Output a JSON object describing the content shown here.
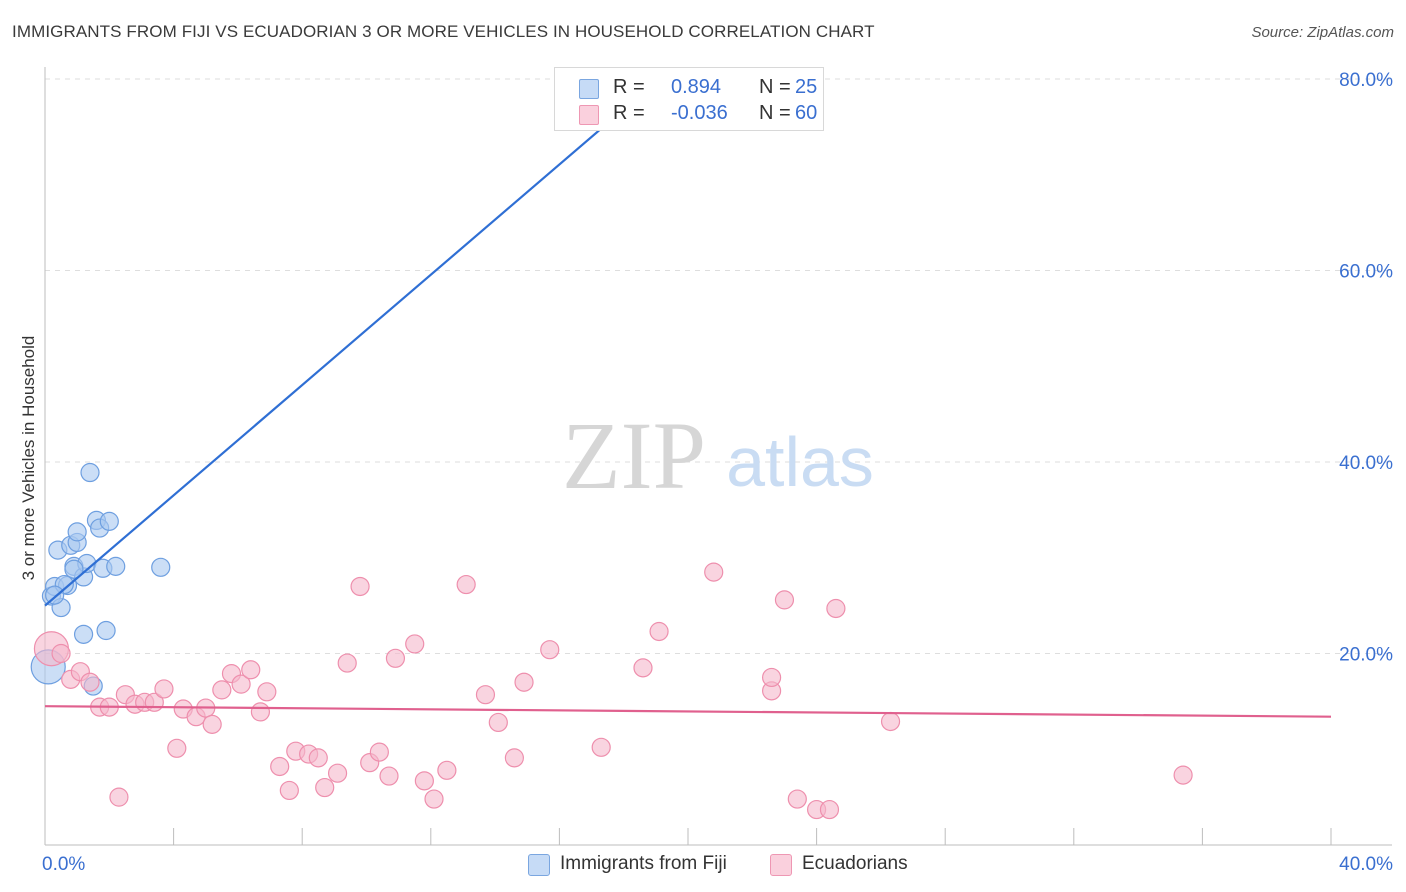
{
  "title": "IMMIGRANTS FROM FIJI VS ECUADORIAN 3 OR MORE VEHICLES IN HOUSEHOLD CORRELATION CHART",
  "source": "Source: ZipAtlas.com",
  "watermark": {
    "zip": "ZIP",
    "atlas": "atlas"
  },
  "legend_top": {
    "rows": [
      {
        "label": "R =",
        "r": "0.894",
        "n_label": "N =",
        "n": "25",
        "color": "#a9c8f0"
      },
      {
        "label": "R =",
        "r": "-0.036",
        "n_label": "N =",
        "n": "60",
        "color": "#f5b8cb"
      }
    ]
  },
  "chart_data": {
    "type": "scatter",
    "title": "IMMIGRANTS FROM FIJI VS ECUADORIAN 3 OR MORE VEHICLES IN HOUSEHOLD CORRELATION CHART",
    "xlabel": "",
    "ylabel": "3 or more Vehicles in Household",
    "xlim": [
      0,
      40
    ],
    "ylim": [
      0,
      80
    ],
    "x_tick_labels": [
      {
        "value": 0,
        "label": "0.0%"
      },
      {
        "value": 40,
        "label": "40.0%"
      }
    ],
    "y_tick_labels": [
      {
        "value": 20,
        "label": "20.0%"
      },
      {
        "value": 40,
        "label": "40.0%"
      },
      {
        "value": 60,
        "label": "60.0%"
      },
      {
        "value": 80,
        "label": "80.0%"
      }
    ],
    "grid": true,
    "legend_position": "bottom",
    "series": [
      {
        "name": "Immigrants from Fiji",
        "color": "#a9c8f0",
        "stroke": "#6e9fe0",
        "trend_color": "#2f6fd4",
        "trend": {
          "x": [
            0,
            19.1
          ],
          "y": [
            25.0,
            80.0
          ]
        },
        "points": [
          {
            "x": 0.1,
            "y": 18.6,
            "big": true
          },
          {
            "x": 0.2,
            "y": 26.0
          },
          {
            "x": 0.3,
            "y": 27.0
          },
          {
            "x": 0.5,
            "y": 24.8
          },
          {
            "x": 0.4,
            "y": 30.8
          },
          {
            "x": 0.7,
            "y": 27.1
          },
          {
            "x": 0.8,
            "y": 31.3
          },
          {
            "x": 0.9,
            "y": 29.1
          },
          {
            "x": 1.0,
            "y": 31.6
          },
          {
            "x": 1.0,
            "y": 32.7
          },
          {
            "x": 1.2,
            "y": 22.0
          },
          {
            "x": 1.2,
            "y": 28.0
          },
          {
            "x": 1.3,
            "y": 29.4
          },
          {
            "x": 1.4,
            "y": 38.9
          },
          {
            "x": 1.5,
            "y": 16.6
          },
          {
            "x": 1.6,
            "y": 33.9
          },
          {
            "x": 1.7,
            "y": 33.1
          },
          {
            "x": 1.8,
            "y": 28.9
          },
          {
            "x": 1.9,
            "y": 22.4
          },
          {
            "x": 2.0,
            "y": 33.8
          },
          {
            "x": 2.2,
            "y": 29.1
          },
          {
            "x": 3.6,
            "y": 29.0
          },
          {
            "x": 0.6,
            "y": 27.2
          },
          {
            "x": 0.3,
            "y": 26.1
          },
          {
            "x": 0.9,
            "y": 28.8
          }
        ]
      },
      {
        "name": "Ecuadorians",
        "color": "#f5b8cb",
        "stroke": "#ee8fad",
        "trend_color": "#e0608e",
        "trend": {
          "x": [
            0,
            40
          ],
          "y": [
            14.5,
            13.4
          ]
        },
        "points": [
          {
            "x": 0.2,
            "y": 20.5,
            "big": true
          },
          {
            "x": 0.5,
            "y": 20.0
          },
          {
            "x": 0.8,
            "y": 17.3
          },
          {
            "x": 1.1,
            "y": 18.1
          },
          {
            "x": 1.4,
            "y": 17.0
          },
          {
            "x": 1.7,
            "y": 14.4
          },
          {
            "x": 2.0,
            "y": 14.4
          },
          {
            "x": 2.3,
            "y": 5.0
          },
          {
            "x": 2.5,
            "y": 15.7
          },
          {
            "x": 2.8,
            "y": 14.7
          },
          {
            "x": 3.1,
            "y": 14.9
          },
          {
            "x": 3.4,
            "y": 14.9
          },
          {
            "x": 3.7,
            "y": 16.3
          },
          {
            "x": 4.1,
            "y": 10.1
          },
          {
            "x": 4.3,
            "y": 14.2
          },
          {
            "x": 4.7,
            "y": 13.4
          },
          {
            "x": 5.0,
            "y": 14.3
          },
          {
            "x": 5.2,
            "y": 12.6
          },
          {
            "x": 5.5,
            "y": 16.2
          },
          {
            "x": 5.8,
            "y": 17.9
          },
          {
            "x": 6.1,
            "y": 16.8
          },
          {
            "x": 6.4,
            "y": 18.3
          },
          {
            "x": 6.7,
            "y": 13.9
          },
          {
            "x": 6.9,
            "y": 16.0
          },
          {
            "x": 7.3,
            "y": 8.2
          },
          {
            "x": 7.6,
            "y": 5.7
          },
          {
            "x": 7.8,
            "y": 9.8
          },
          {
            "x": 8.2,
            "y": 9.5
          },
          {
            "x": 8.5,
            "y": 9.1
          },
          {
            "x": 8.7,
            "y": 6.0
          },
          {
            "x": 9.1,
            "y": 7.5
          },
          {
            "x": 9.4,
            "y": 19.0
          },
          {
            "x": 9.8,
            "y": 27.0
          },
          {
            "x": 10.1,
            "y": 8.6
          },
          {
            "x": 10.4,
            "y": 9.7
          },
          {
            "x": 10.7,
            "y": 7.2
          },
          {
            "x": 10.9,
            "y": 19.5
          },
          {
            "x": 11.5,
            "y": 21.0
          },
          {
            "x": 11.8,
            "y": 6.7
          },
          {
            "x": 12.1,
            "y": 4.8
          },
          {
            "x": 12.5,
            "y": 7.8
          },
          {
            "x": 13.1,
            "y": 27.2
          },
          {
            "x": 13.7,
            "y": 15.7
          },
          {
            "x": 14.1,
            "y": 12.8
          },
          {
            "x": 14.6,
            "y": 9.1
          },
          {
            "x": 14.9,
            "y": 17.0
          },
          {
            "x": 15.7,
            "y": 20.4
          },
          {
            "x": 17.3,
            "y": 10.2
          },
          {
            "x": 18.6,
            "y": 18.5
          },
          {
            "x": 19.1,
            "y": 22.3
          },
          {
            "x": 20.8,
            "y": 28.5
          },
          {
            "x": 22.6,
            "y": 16.1
          },
          {
            "x": 22.6,
            "y": 17.5
          },
          {
            "x": 23.0,
            "y": 25.6
          },
          {
            "x": 23.4,
            "y": 4.8
          },
          {
            "x": 24.0,
            "y": 3.7
          },
          {
            "x": 24.4,
            "y": 3.7
          },
          {
            "x": 24.6,
            "y": 24.7
          },
          {
            "x": 26.3,
            "y": 12.9
          },
          {
            "x": 35.4,
            "y": 7.3
          }
        ]
      }
    ]
  }
}
